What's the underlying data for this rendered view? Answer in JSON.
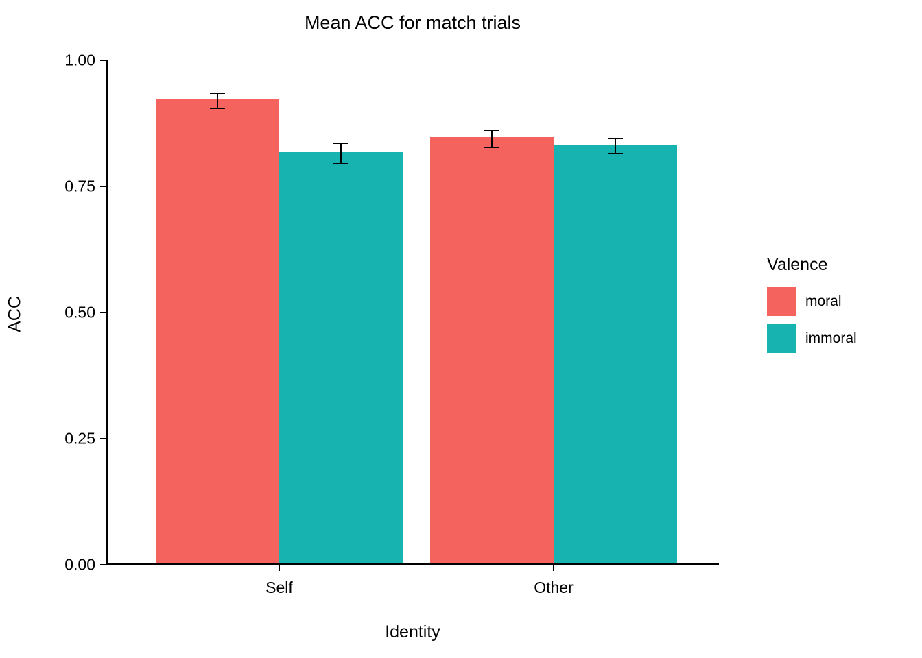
{
  "chart_data": {
    "type": "bar",
    "title": "Mean ACC for match trials",
    "xlabel": "Identity",
    "ylabel": "ACC",
    "categories": [
      "Self",
      "Other"
    ],
    "series": [
      {
        "name": "moral",
        "color": "#F4635E",
        "values": [
          0.92,
          0.845
        ],
        "errors": [
          0.015,
          0.017
        ]
      },
      {
        "name": "immoral",
        "color": "#17B3B0",
        "values": [
          0.815,
          0.83
        ],
        "errors": [
          0.02,
          0.015
        ]
      }
    ],
    "ylim": [
      0.0,
      1.0
    ],
    "yticks": [
      0.0,
      0.25,
      0.5,
      0.75,
      1.0
    ],
    "ytick_labels": [
      "0.00",
      "0.25",
      "0.50",
      "0.75",
      "1.00"
    ],
    "legend_title": "Valence",
    "legend_position": "right",
    "grid": false,
    "error_bars": true,
    "axis_color": "#000000",
    "background_color": "#ffffff"
  }
}
